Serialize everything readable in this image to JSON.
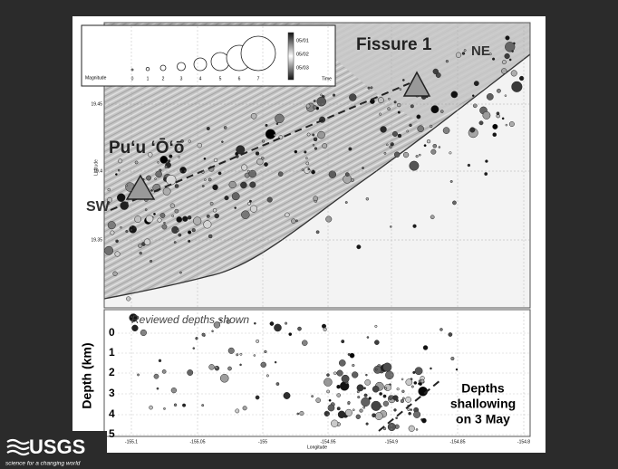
{
  "legend": {
    "magnitude_label": "Magnitude",
    "magnitudes": [
      "0",
      "1",
      "2",
      "3",
      "4",
      "5",
      "6",
      "7"
    ],
    "time_ticks": [
      "05/01",
      "05/02",
      "05/03"
    ],
    "time_label": "Time"
  },
  "map": {
    "fissure_label": "Fissure 1",
    "ne_label": "NE",
    "puu_oo_label": "Pu‘u ‘Ō‘ō",
    "sw_label": "SW",
    "latitude_label": "Latitude",
    "lat_ticks": [
      "19.45",
      "19.4",
      "19.35"
    ]
  },
  "depth_panel": {
    "note": "Reviewed depths shown",
    "y_label": "Depth (km)",
    "depth_ticks": [
      "0",
      "1",
      "2",
      "3",
      "4",
      "5"
    ],
    "annotation": [
      "Depths",
      "shallowing",
      "on 3 May"
    ],
    "longitude_label": "Longitude",
    "lon_ticks": [
      "-155.1",
      "-155.05",
      "-155",
      "-154.95",
      "-154.9",
      "-154.85",
      "-154.8"
    ]
  },
  "logo": {
    "name": "USGS",
    "tagline": "science for a changing world"
  }
}
